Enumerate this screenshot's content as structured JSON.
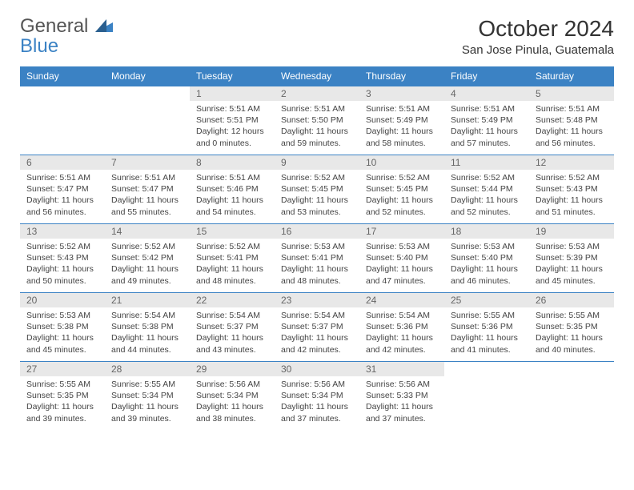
{
  "logo": {
    "part1": "General",
    "part2": "Blue"
  },
  "title": "October 2024",
  "location": "San Jose Pinula, Guatemala",
  "weekdays": [
    "Sunday",
    "Monday",
    "Tuesday",
    "Wednesday",
    "Thursday",
    "Friday",
    "Saturday"
  ],
  "colors": {
    "header_bg": "#3b82c4",
    "header_text": "#ffffff",
    "daynum_bg": "#e8e8e8",
    "border": "#3b82c4",
    "text": "#444444",
    "logo_gray": "#555555",
    "logo_blue": "#3b82c4"
  },
  "layout": {
    "columns": 7,
    "rows": 5,
    "leading_blanks": 2,
    "font_size_header": 12,
    "font_size_content": 10.5,
    "font_size_title": 28,
    "font_size_location": 15
  },
  "days": [
    {
      "n": "1",
      "sr": "Sunrise: 5:51 AM",
      "ss": "Sunset: 5:51 PM",
      "dl": "Daylight: 12 hours and 0 minutes."
    },
    {
      "n": "2",
      "sr": "Sunrise: 5:51 AM",
      "ss": "Sunset: 5:50 PM",
      "dl": "Daylight: 11 hours and 59 minutes."
    },
    {
      "n": "3",
      "sr": "Sunrise: 5:51 AM",
      "ss": "Sunset: 5:49 PM",
      "dl": "Daylight: 11 hours and 58 minutes."
    },
    {
      "n": "4",
      "sr": "Sunrise: 5:51 AM",
      "ss": "Sunset: 5:49 PM",
      "dl": "Daylight: 11 hours and 57 minutes."
    },
    {
      "n": "5",
      "sr": "Sunrise: 5:51 AM",
      "ss": "Sunset: 5:48 PM",
      "dl": "Daylight: 11 hours and 56 minutes."
    },
    {
      "n": "6",
      "sr": "Sunrise: 5:51 AM",
      "ss": "Sunset: 5:47 PM",
      "dl": "Daylight: 11 hours and 56 minutes."
    },
    {
      "n": "7",
      "sr": "Sunrise: 5:51 AM",
      "ss": "Sunset: 5:47 PM",
      "dl": "Daylight: 11 hours and 55 minutes."
    },
    {
      "n": "8",
      "sr": "Sunrise: 5:51 AM",
      "ss": "Sunset: 5:46 PM",
      "dl": "Daylight: 11 hours and 54 minutes."
    },
    {
      "n": "9",
      "sr": "Sunrise: 5:52 AM",
      "ss": "Sunset: 5:45 PM",
      "dl": "Daylight: 11 hours and 53 minutes."
    },
    {
      "n": "10",
      "sr": "Sunrise: 5:52 AM",
      "ss": "Sunset: 5:45 PM",
      "dl": "Daylight: 11 hours and 52 minutes."
    },
    {
      "n": "11",
      "sr": "Sunrise: 5:52 AM",
      "ss": "Sunset: 5:44 PM",
      "dl": "Daylight: 11 hours and 52 minutes."
    },
    {
      "n": "12",
      "sr": "Sunrise: 5:52 AM",
      "ss": "Sunset: 5:43 PM",
      "dl": "Daylight: 11 hours and 51 minutes."
    },
    {
      "n": "13",
      "sr": "Sunrise: 5:52 AM",
      "ss": "Sunset: 5:43 PM",
      "dl": "Daylight: 11 hours and 50 minutes."
    },
    {
      "n": "14",
      "sr": "Sunrise: 5:52 AM",
      "ss": "Sunset: 5:42 PM",
      "dl": "Daylight: 11 hours and 49 minutes."
    },
    {
      "n": "15",
      "sr": "Sunrise: 5:52 AM",
      "ss": "Sunset: 5:41 PM",
      "dl": "Daylight: 11 hours and 48 minutes."
    },
    {
      "n": "16",
      "sr": "Sunrise: 5:53 AM",
      "ss": "Sunset: 5:41 PM",
      "dl": "Daylight: 11 hours and 48 minutes."
    },
    {
      "n": "17",
      "sr": "Sunrise: 5:53 AM",
      "ss": "Sunset: 5:40 PM",
      "dl": "Daylight: 11 hours and 47 minutes."
    },
    {
      "n": "18",
      "sr": "Sunrise: 5:53 AM",
      "ss": "Sunset: 5:40 PM",
      "dl": "Daylight: 11 hours and 46 minutes."
    },
    {
      "n": "19",
      "sr": "Sunrise: 5:53 AM",
      "ss": "Sunset: 5:39 PM",
      "dl": "Daylight: 11 hours and 45 minutes."
    },
    {
      "n": "20",
      "sr": "Sunrise: 5:53 AM",
      "ss": "Sunset: 5:38 PM",
      "dl": "Daylight: 11 hours and 45 minutes."
    },
    {
      "n": "21",
      "sr": "Sunrise: 5:54 AM",
      "ss": "Sunset: 5:38 PM",
      "dl": "Daylight: 11 hours and 44 minutes."
    },
    {
      "n": "22",
      "sr": "Sunrise: 5:54 AM",
      "ss": "Sunset: 5:37 PM",
      "dl": "Daylight: 11 hours and 43 minutes."
    },
    {
      "n": "23",
      "sr": "Sunrise: 5:54 AM",
      "ss": "Sunset: 5:37 PM",
      "dl": "Daylight: 11 hours and 42 minutes."
    },
    {
      "n": "24",
      "sr": "Sunrise: 5:54 AM",
      "ss": "Sunset: 5:36 PM",
      "dl": "Daylight: 11 hours and 42 minutes."
    },
    {
      "n": "25",
      "sr": "Sunrise: 5:55 AM",
      "ss": "Sunset: 5:36 PM",
      "dl": "Daylight: 11 hours and 41 minutes."
    },
    {
      "n": "26",
      "sr": "Sunrise: 5:55 AM",
      "ss": "Sunset: 5:35 PM",
      "dl": "Daylight: 11 hours and 40 minutes."
    },
    {
      "n": "27",
      "sr": "Sunrise: 5:55 AM",
      "ss": "Sunset: 5:35 PM",
      "dl": "Daylight: 11 hours and 39 minutes."
    },
    {
      "n": "28",
      "sr": "Sunrise: 5:55 AM",
      "ss": "Sunset: 5:34 PM",
      "dl": "Daylight: 11 hours and 39 minutes."
    },
    {
      "n": "29",
      "sr": "Sunrise: 5:56 AM",
      "ss": "Sunset: 5:34 PM",
      "dl": "Daylight: 11 hours and 38 minutes."
    },
    {
      "n": "30",
      "sr": "Sunrise: 5:56 AM",
      "ss": "Sunset: 5:34 PM",
      "dl": "Daylight: 11 hours and 37 minutes."
    },
    {
      "n": "31",
      "sr": "Sunrise: 5:56 AM",
      "ss": "Sunset: 5:33 PM",
      "dl": "Daylight: 11 hours and 37 minutes."
    }
  ]
}
